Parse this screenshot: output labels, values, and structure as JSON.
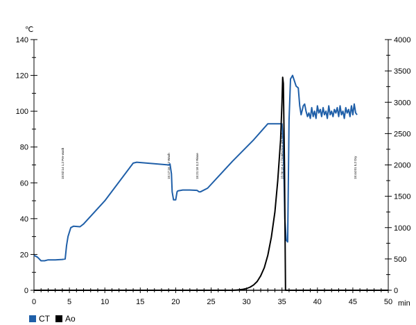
{
  "chart_data": {
    "type": "line",
    "x_unit": "min",
    "y_left_unit": "℃",
    "x_ticks": [
      "0",
      "5",
      "10",
      "15",
      "20",
      "25",
      "30",
      "35",
      "40",
      "45",
      "50"
    ],
    "y_left_ticks": [
      "0",
      "20",
      "40",
      "60",
      "80",
      "100",
      "120",
      "140"
    ],
    "y_right_ticks": [
      "0",
      "500",
      "1000",
      "1500",
      "2000",
      "2500",
      "3000",
      "3500",
      "4000"
    ],
    "xlim": [
      0,
      50
    ],
    "ylim_left": [
      0,
      140
    ],
    "ylim_right": [
      0,
      4000
    ],
    "grid": false,
    "legend_position": "bottom-left",
    "colors": {
      "CT": "#1f5fa8",
      "Ao": "#000000"
    },
    "annotations": [
      {
        "text": "15:02:14 1,2 Pre-wash",
        "x": 4.0
      },
      {
        "text": "15:17:16 3,2 Wash",
        "x": 19.0
      },
      {
        "text": "15:21:18 3,2 Rinse",
        "x": 23.0
      },
      {
        "text": "15:36:18 4,2 Disinfection A0 3000",
        "x": 35.0
      },
      {
        "text": "15:44:01 5,2 Dry",
        "x": 45.3
      }
    ],
    "series": [
      {
        "name": "CT",
        "axis": "left",
        "x": [
          0.0,
          0.5,
          1.0,
          1.5,
          2.0,
          3.0,
          4.0,
          4.4,
          4.6,
          4.8,
          5.2,
          5.6,
          6.5,
          7.0,
          10.0,
          14.0,
          14.5,
          19.0,
          19.2,
          19.4,
          19.5,
          19.7,
          20.0,
          20.2,
          20.3,
          21.0,
          22.0,
          23.0,
          23.3,
          23.5,
          24.5,
          28.0,
          31.0,
          33.0,
          34.0,
          35.0,
          35.2,
          35.4,
          35.6,
          35.8,
          36.0,
          36.2,
          36.5,
          37.0,
          37.3,
          37.5,
          37.7,
          38.0,
          38.2,
          38.4,
          38.6,
          38.8,
          39.0,
          39.2,
          39.4,
          39.6,
          39.8,
          40.0,
          40.2,
          40.4,
          40.6,
          40.8,
          41.0,
          41.2,
          41.4,
          41.6,
          41.8,
          42.0,
          42.2,
          42.4,
          42.6,
          42.8,
          43.0,
          43.2,
          43.4,
          43.6,
          43.8,
          44.0,
          44.2,
          44.4,
          44.6,
          44.8,
          45.0,
          45.2,
          45.4,
          45.6
        ],
        "values": [
          19.5,
          18.5,
          16.5,
          16.5,
          17,
          17,
          17.2,
          17.5,
          25,
          30,
          35,
          35.8,
          35.5,
          37,
          50,
          71,
          71.5,
          70,
          70.5,
          65,
          55,
          50.5,
          50.5,
          55,
          55.5,
          56,
          56,
          55.8,
          55,
          55,
          57,
          72,
          84,
          93,
          93,
          93,
          82,
          40,
          28,
          27,
          95,
          118,
          120,
          114,
          113,
          103,
          98,
          103,
          104,
          100,
          97,
          99,
          96,
          102,
          97,
          100,
          96,
          103,
          99,
          101,
          97,
          102,
          98,
          100,
          96,
          103,
          98,
          100,
          97,
          101,
          99,
          102,
          97,
          103,
          98,
          100,
          96,
          102,
          99,
          101,
          97,
          103,
          98,
          104,
          99,
          98
        ]
      },
      {
        "name": "Ao",
        "axis": "right",
        "x": [
          0,
          28.0,
          28.5,
          29.0,
          29.5,
          30.0,
          30.5,
          31.0,
          31.5,
          32.0,
          32.5,
          33.0,
          33.5,
          34.0,
          34.4,
          34.8,
          35.0,
          35.1,
          35.2,
          35.35,
          35.5,
          50
        ],
        "values": [
          0,
          0,
          3,
          8,
          15,
          28,
          50,
          85,
          140,
          230,
          360,
          560,
          850,
          1250,
          1750,
          2400,
          3000,
          3400,
          3300,
          2000,
          0,
          0
        ]
      }
    ]
  }
}
